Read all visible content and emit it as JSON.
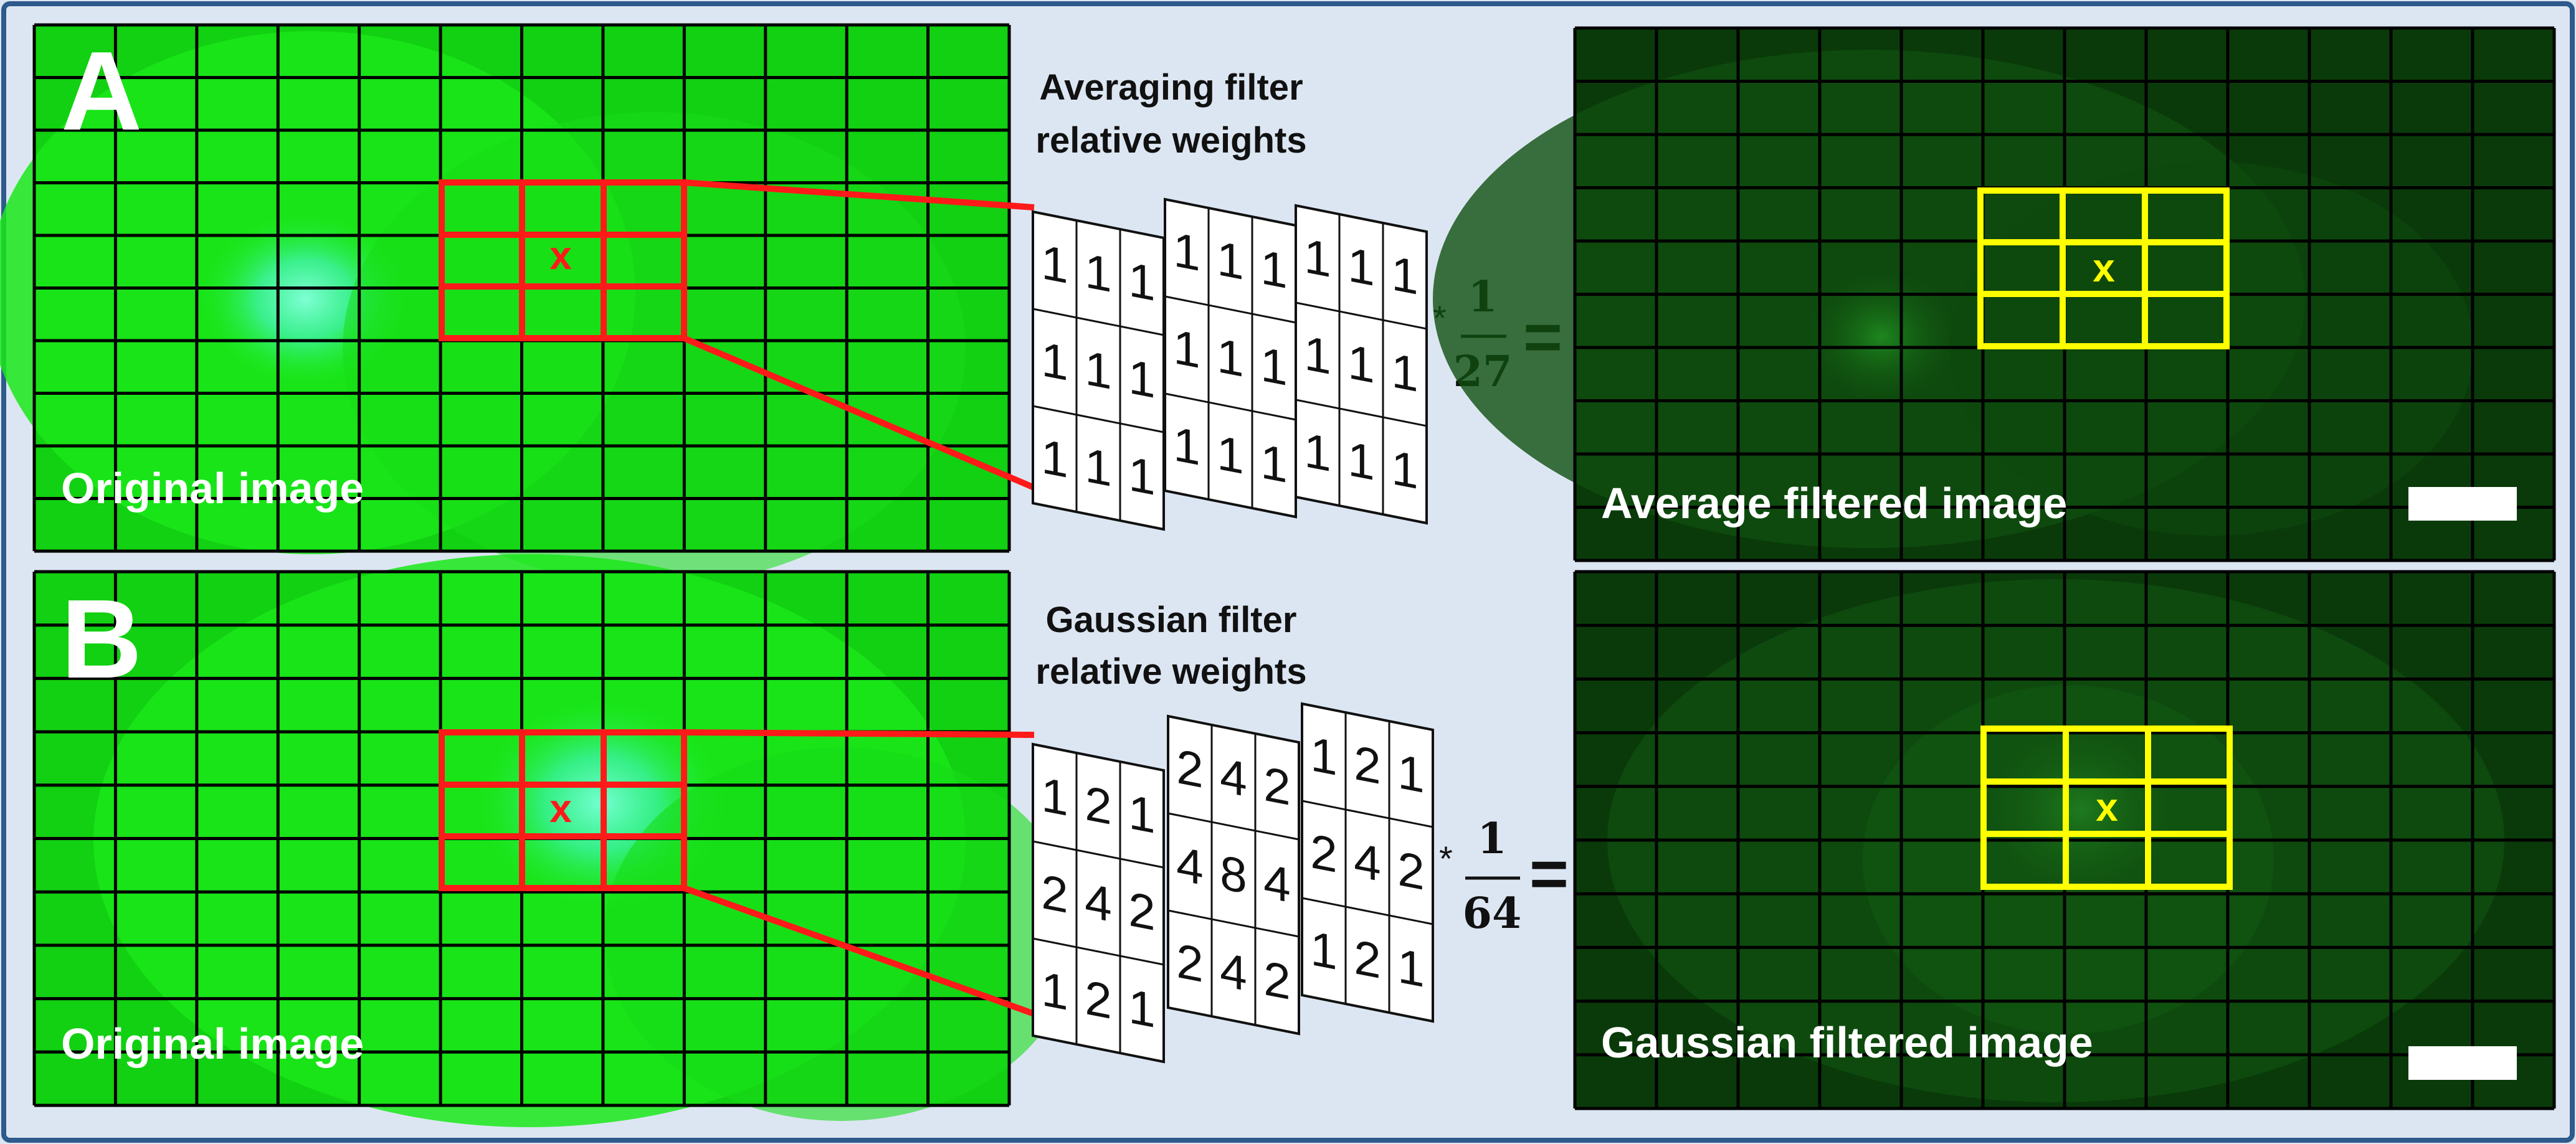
{
  "panels": [
    {
      "letter": "A",
      "original_label": "Original image",
      "filter_title_line1": "Averaging filter",
      "filter_title_line2": "relative weights",
      "kernels": [
        [
          [
            "1",
            "1",
            "1"
          ],
          [
            "1",
            "1",
            "1"
          ],
          [
            "1",
            "1",
            "1"
          ]
        ],
        [
          [
            "1",
            "1",
            "1"
          ],
          [
            "1",
            "1",
            "1"
          ],
          [
            "1",
            "1",
            "1"
          ]
        ],
        [
          [
            "1",
            "1",
            "1"
          ],
          [
            "1",
            "1",
            "1"
          ],
          [
            "1",
            "1",
            "1"
          ]
        ]
      ],
      "multiply": "*",
      "fraction_numerator": "1",
      "fraction_denominator": "27",
      "equals": "=",
      "center_marker": "x",
      "filtered_label": "Average filtered image"
    },
    {
      "letter": "B",
      "original_label": "Original image",
      "filter_title_line1": "Gaussian filter",
      "filter_title_line2": "relative weights",
      "kernels": [
        [
          [
            "1",
            "2",
            "1"
          ],
          [
            "2",
            "4",
            "2"
          ],
          [
            "1",
            "2",
            "1"
          ]
        ],
        [
          [
            "2",
            "4",
            "2"
          ],
          [
            "4",
            "8",
            "4"
          ],
          [
            "2",
            "4",
            "2"
          ]
        ],
        [
          [
            "1",
            "2",
            "1"
          ],
          [
            "2",
            "4",
            "2"
          ],
          [
            "1",
            "2",
            "1"
          ]
        ]
      ],
      "multiply": "*",
      "fraction_numerator": "1",
      "fraction_denominator": "64",
      "equals": "=",
      "center_marker": "x",
      "filtered_label": "Gaussian filtered image"
    }
  ],
  "colors": {
    "background": "#dce6f2",
    "outer_border": "#2e5a8c",
    "original_green": "#12d012",
    "filtered_green": "#0a3a0a",
    "grid_line": "#000000",
    "highlight_red": "#ff1a1a",
    "highlight_yellow": "#ffff00",
    "label_white": "#ffffff"
  }
}
